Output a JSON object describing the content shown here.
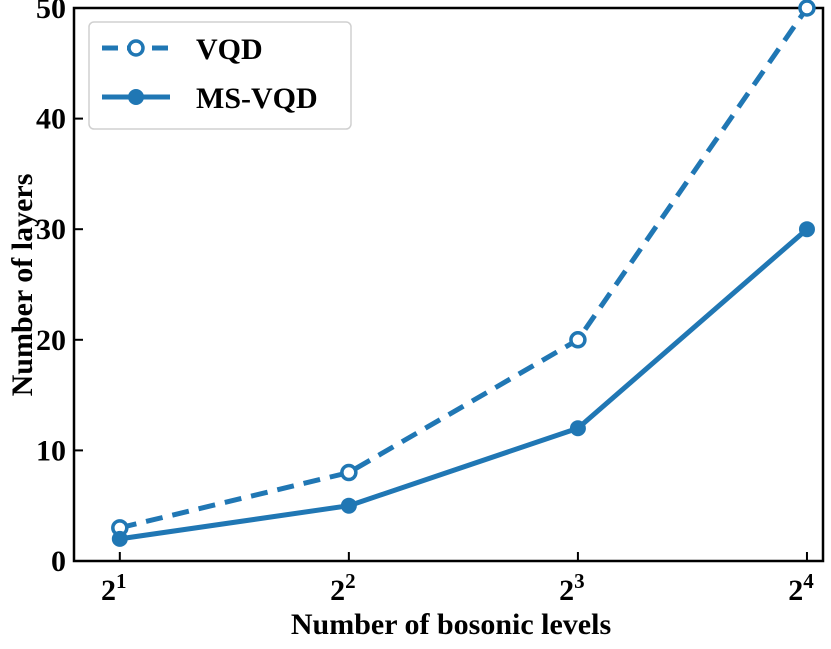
{
  "chart_data": {
    "type": "line",
    "title": "",
    "xlabel": "Number of bosonic levels",
    "ylabel": "Number of layers",
    "xscale": "log2",
    "x": [
      2,
      4,
      8,
      16
    ],
    "xticks": [
      {
        "value": 2,
        "base": "2",
        "exp": "1"
      },
      {
        "value": 4,
        "base": "2",
        "exp": "2"
      },
      {
        "value": 8,
        "base": "2",
        "exp": "3"
      },
      {
        "value": 16,
        "base": "2",
        "exp": "4"
      }
    ],
    "yticks": [
      "0",
      "10",
      "20",
      "30",
      "40",
      "50"
    ],
    "ylim": [
      0,
      50
    ],
    "xlim_log2": [
      0.8,
      4.07
    ],
    "grid": false,
    "legend_position": "top-left",
    "series": [
      {
        "name": "VQD",
        "values": [
          3,
          8,
          20,
          50
        ],
        "color": "#2077b4",
        "style": "dashed",
        "marker": "open-circle"
      },
      {
        "name": "MS-VQD",
        "values": [
          2,
          5,
          12,
          30
        ],
        "color": "#2077b4",
        "style": "solid",
        "marker": "filled-circle"
      }
    ]
  }
}
